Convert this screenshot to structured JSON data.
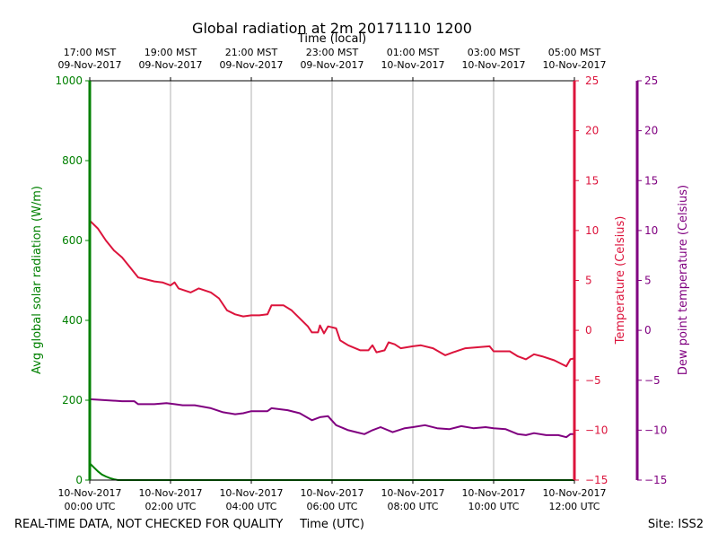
{
  "chart_data": {
    "type": "line",
    "title": "Global radiation at 2m 20171110 1200",
    "top_axis_label": "Time (local)",
    "xlabel": "Time (UTC)",
    "x_ticks_utc": [
      {
        "date": "10-Nov-2017",
        "time": "00:00 UTC"
      },
      {
        "date": "10-Nov-2017",
        "time": "02:00 UTC"
      },
      {
        "date": "10-Nov-2017",
        "time": "04:00 UTC"
      },
      {
        "date": "10-Nov-2017",
        "time": "06:00 UTC"
      },
      {
        "date": "10-Nov-2017",
        "time": "08:00 UTC"
      },
      {
        "date": "10-Nov-2017",
        "time": "10:00 UTC"
      },
      {
        "date": "10-Nov-2017",
        "time": "12:00 UTC"
      }
    ],
    "x_ticks_local": [
      {
        "time": "17:00 MST",
        "date": "09-Nov-2017"
      },
      {
        "time": "19:00 MST",
        "date": "09-Nov-2017"
      },
      {
        "time": "21:00 MST",
        "date": "09-Nov-2017"
      },
      {
        "time": "23:00 MST",
        "date": "09-Nov-2017"
      },
      {
        "time": "01:00 MST",
        "date": "10-Nov-2017"
      },
      {
        "time": "03:00 MST",
        "date": "10-Nov-2017"
      },
      {
        "time": "05:00 MST",
        "date": "10-Nov-2017"
      }
    ],
    "xlim_hours": [
      0,
      12
    ],
    "grid": "vertical at each x tick",
    "left_axis": {
      "label": "Avg global solar radiation (W/m)",
      "color": "#008000",
      "ylim": [
        0,
        1000
      ],
      "ticks": [
        "0",
        "200",
        "400",
        "600",
        "800",
        "1000"
      ]
    },
    "right_axis_1": {
      "label": "Temperature (Celsius)",
      "color": "#dc143c",
      "ylim": [
        -15,
        25
      ],
      "ticks": [
        "−15",
        "−10",
        "−5",
        "0",
        "5",
        "10",
        "15",
        "20",
        "25"
      ]
    },
    "right_axis_2": {
      "label": "Dew point temperature (Celsius)",
      "color": "#800080",
      "ylim": [
        -15,
        25
      ],
      "ticks": [
        "−15",
        "−10",
        "−5",
        "0",
        "5",
        "10",
        "15",
        "20",
        "25"
      ]
    },
    "series": [
      {
        "axis": "left",
        "color": "#008000",
        "points": [
          [
            0,
            42
          ],
          [
            0.1,
            32
          ],
          [
            0.2,
            22
          ],
          [
            0.3,
            14
          ],
          [
            0.4,
            9
          ],
          [
            0.5,
            5
          ],
          [
            0.6,
            2
          ],
          [
            0.7,
            0
          ],
          [
            12,
            0
          ]
        ]
      },
      {
        "axis": "right_1",
        "color": "#dc143c",
        "points": [
          [
            0,
            11
          ],
          [
            0.2,
            10.2
          ],
          [
            0.4,
            9
          ],
          [
            0.6,
            8
          ],
          [
            0.8,
            7.3
          ],
          [
            1.0,
            6.3
          ],
          [
            1.2,
            5.3
          ],
          [
            1.4,
            5.1
          ],
          [
            1.6,
            4.9
          ],
          [
            1.8,
            4.8
          ],
          [
            2.0,
            4.5
          ],
          [
            2.1,
            4.8
          ],
          [
            2.2,
            4.2
          ],
          [
            2.5,
            3.8
          ],
          [
            2.7,
            4.2
          ],
          [
            3.0,
            3.8
          ],
          [
            3.2,
            3.2
          ],
          [
            3.4,
            2.0
          ],
          [
            3.6,
            1.6
          ],
          [
            3.8,
            1.4
          ],
          [
            4.0,
            1.5
          ],
          [
            4.2,
            1.5
          ],
          [
            4.4,
            1.6
          ],
          [
            4.5,
            2.5
          ],
          [
            4.8,
            2.5
          ],
          [
            5.0,
            2.0
          ],
          [
            5.2,
            1.2
          ],
          [
            5.4,
            0.4
          ],
          [
            5.5,
            -0.2
          ],
          [
            5.65,
            -0.2
          ],
          [
            5.7,
            0.5
          ],
          [
            5.8,
            -0.3
          ],
          [
            5.9,
            0.4
          ],
          [
            6.1,
            0.2
          ],
          [
            6.2,
            -1.0
          ],
          [
            6.4,
            -1.5
          ],
          [
            6.7,
            -2.0
          ],
          [
            6.9,
            -2.0
          ],
          [
            7.0,
            -1.5
          ],
          [
            7.1,
            -2.2
          ],
          [
            7.3,
            -2.0
          ],
          [
            7.4,
            -1.2
          ],
          [
            7.55,
            -1.4
          ],
          [
            7.7,
            -1.8
          ],
          [
            8.0,
            -1.6
          ],
          [
            8.2,
            -1.5
          ],
          [
            8.5,
            -1.8
          ],
          [
            8.8,
            -2.5
          ],
          [
            9.0,
            -2.2
          ],
          [
            9.3,
            -1.8
          ],
          [
            9.6,
            -1.7
          ],
          [
            9.9,
            -1.6
          ],
          [
            10.0,
            -2.1
          ],
          [
            10.4,
            -2.1
          ],
          [
            10.6,
            -2.6
          ],
          [
            10.8,
            -2.9
          ],
          [
            11.0,
            -2.4
          ],
          [
            11.2,
            -2.6
          ],
          [
            11.5,
            -3.0
          ],
          [
            11.7,
            -3.4
          ],
          [
            11.8,
            -3.6
          ],
          [
            11.9,
            -2.9
          ],
          [
            12.0,
            -2.8
          ]
        ]
      },
      {
        "axis": "right_2",
        "color": "#800080",
        "points": [
          [
            0,
            -6.9
          ],
          [
            0.4,
            -7.0
          ],
          [
            0.8,
            -7.1
          ],
          [
            1.1,
            -7.1
          ],
          [
            1.2,
            -7.4
          ],
          [
            1.6,
            -7.4
          ],
          [
            1.9,
            -7.3
          ],
          [
            2.1,
            -7.4
          ],
          [
            2.3,
            -7.5
          ],
          [
            2.6,
            -7.5
          ],
          [
            3.0,
            -7.8
          ],
          [
            3.3,
            -8.2
          ],
          [
            3.6,
            -8.4
          ],
          [
            3.8,
            -8.3
          ],
          [
            4.0,
            -8.1
          ],
          [
            4.4,
            -8.1
          ],
          [
            4.5,
            -7.8
          ],
          [
            4.9,
            -8.0
          ],
          [
            5.2,
            -8.3
          ],
          [
            5.5,
            -9.0
          ],
          [
            5.7,
            -8.7
          ],
          [
            5.9,
            -8.6
          ],
          [
            6.1,
            -9.5
          ],
          [
            6.4,
            -10.0
          ],
          [
            6.6,
            -10.2
          ],
          [
            6.8,
            -10.4
          ],
          [
            7.0,
            -10.0
          ],
          [
            7.2,
            -9.7
          ],
          [
            7.5,
            -10.2
          ],
          [
            7.8,
            -9.8
          ],
          [
            8.0,
            -9.7
          ],
          [
            8.3,
            -9.5
          ],
          [
            8.6,
            -9.8
          ],
          [
            8.9,
            -9.9
          ],
          [
            9.2,
            -9.6
          ],
          [
            9.5,
            -9.8
          ],
          [
            9.8,
            -9.7
          ],
          [
            10.0,
            -9.8
          ],
          [
            10.3,
            -9.9
          ],
          [
            10.6,
            -10.4
          ],
          [
            10.8,
            -10.5
          ],
          [
            11.0,
            -10.3
          ],
          [
            11.3,
            -10.5
          ],
          [
            11.6,
            -10.5
          ],
          [
            11.8,
            -10.7
          ],
          [
            11.9,
            -10.4
          ],
          [
            12.0,
            -10.4
          ]
        ]
      }
    ]
  },
  "footer": {
    "left": "REAL-TIME DATA, NOT CHECKED FOR QUALITY",
    "right": "Site: ISS2"
  }
}
